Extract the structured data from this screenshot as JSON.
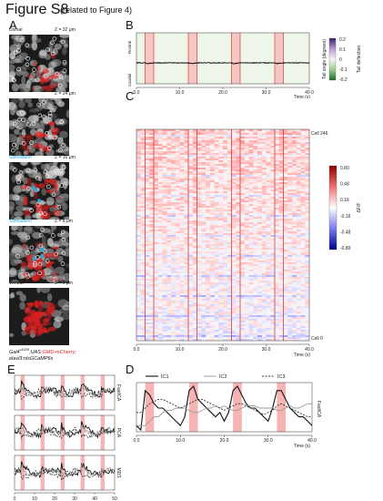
{
  "figure": {
    "title": "Figure S8",
    "subtitle": "(related to Figure 4)"
  },
  "panels": {
    "A": "A",
    "B": "B",
    "C": "C",
    "D": "D",
    "E": "E"
  },
  "panel_a": {
    "tiles": [
      {
        "label": "Dorsal",
        "z": "Z = 32 μm",
        "stim": false
      },
      {
        "label": "",
        "z": "Z = 24 μm",
        "stim": false
      },
      {
        "label": "Stimulation",
        "z": "Z = 16 μm",
        "stim": true
      },
      {
        "label": "Stimulation",
        "z": "Z = 8 μm",
        "stim": true
      },
      {
        "label": "Ventral",
        "z": "Z = 0 μm",
        "stim": false
      }
    ],
    "caption_line1_a": "Gal4",
    "caption_line1_sup": "s1020t",
    "caption_line1_b": ";UAS:",
    "caption_line1_red": "GMD-mCherry",
    "caption_line1_c": ";",
    "caption_line2": "elavl3:nlsGCaMP6s"
  },
  "panel_b": {
    "rostral": "Rostral",
    "caudal": "Caudal",
    "xlabel": "Time (s)",
    "xticks": [
      "0.0",
      "10.0",
      "20.0",
      "30.0",
      "40.0"
    ],
    "colorbar_title": "Tail angle (degrees)",
    "colorbar_ticks": [
      "0.2",
      "0.1",
      "0",
      "-0.1",
      "-0.2"
    ],
    "colorbar_side": "Tail deflection"
  },
  "panel_c": {
    "top_label": "Cell 246",
    "bottom_label": "Cell 0",
    "xlabel": "Time (s)",
    "xticks": [
      "0.0",
      "10.0",
      "20.0",
      "30.0",
      "40.0"
    ],
    "colorbar_label": "ΔF/F",
    "colorbar_ticks": [
      "0.80",
      "0.48",
      "0.16",
      "-0.16",
      "-0.48",
      "-0.80"
    ]
  },
  "panel_d": {
    "legend": [
      "IC1",
      "IC2",
      "IC3"
    ],
    "ylabel": "FastICA",
    "xlabel": "Time (s)",
    "xticks": [
      "0.0",
      "10.0",
      "20.0",
      "30.0",
      "40.0"
    ]
  },
  "panel_e": {
    "row_labels": [
      "FastICA",
      "PCA",
      "MDS"
    ],
    "xlabel": "Time (sec)",
    "xticks": [
      "0",
      "10",
      "20",
      "30",
      "40",
      "50"
    ]
  },
  "colors": {
    "stim_band": "#f6b4b4",
    "stim_line": "#d42020",
    "stim_text": "#29a8dd",
    "mcherry": "#e02020"
  },
  "chart_data": {
    "type": "line",
    "stimulation_onsets_s": [
      2,
      12,
      22,
      32
    ],
    "stimulation_duration_s": 2,
    "x_range_s": [
      0,
      40
    ],
    "series": [
      {
        "name": "IC1",
        "values": [
          0.1,
          0.0,
          0.9,
          0.8,
          0.6,
          0.5,
          0.5,
          0.4,
          0.3,
          0.2,
          0.1,
          0.3,
          0.9,
          1.0,
          0.7,
          0.6,
          0.5,
          0.4,
          0.3,
          0.4,
          0.2,
          0.4,
          0.9,
          1.0,
          0.8,
          0.6,
          0.5,
          0.5,
          0.4,
          0.3,
          0.2,
          0.5,
          0.9,
          0.9,
          0.7,
          0.5,
          0.4,
          0.3,
          0.3,
          0.2,
          0.1
        ]
      },
      {
        "name": "IC2",
        "values": [
          0.1,
          0.1,
          0.1,
          0.2,
          0.3,
          0.3,
          0.4,
          0.45,
          0.45,
          0.5,
          0.5,
          0.5,
          0.45,
          0.4,
          0.4,
          0.45,
          0.5,
          0.5,
          0.55,
          0.5,
          0.55,
          0.5,
          0.45,
          0.45,
          0.5,
          0.55,
          0.55,
          0.55,
          0.5,
          0.5,
          0.5,
          0.5,
          0.45,
          0.45,
          0.5,
          0.55,
          0.5,
          0.5,
          0.55,
          0.6,
          0.6
        ]
      },
      {
        "name": "IC3",
        "values": [
          0.4,
          0.4,
          0.5,
          0.6,
          0.65,
          0.7,
          0.7,
          0.65,
          0.6,
          0.55,
          0.5,
          0.55,
          0.6,
          0.65,
          0.7,
          0.7,
          0.65,
          0.6,
          0.55,
          0.5,
          0.45,
          0.5,
          0.55,
          0.6,
          0.6,
          0.55,
          0.5,
          0.45,
          0.4,
          0.35,
          0.4,
          0.45,
          0.55,
          0.6,
          0.55,
          0.5,
          0.45,
          0.4,
          0.35,
          0.3,
          0.3
        ]
      }
    ],
    "xlabel": "Time (s)",
    "xticks": [
      0,
      10,
      20,
      30,
      40
    ]
  }
}
